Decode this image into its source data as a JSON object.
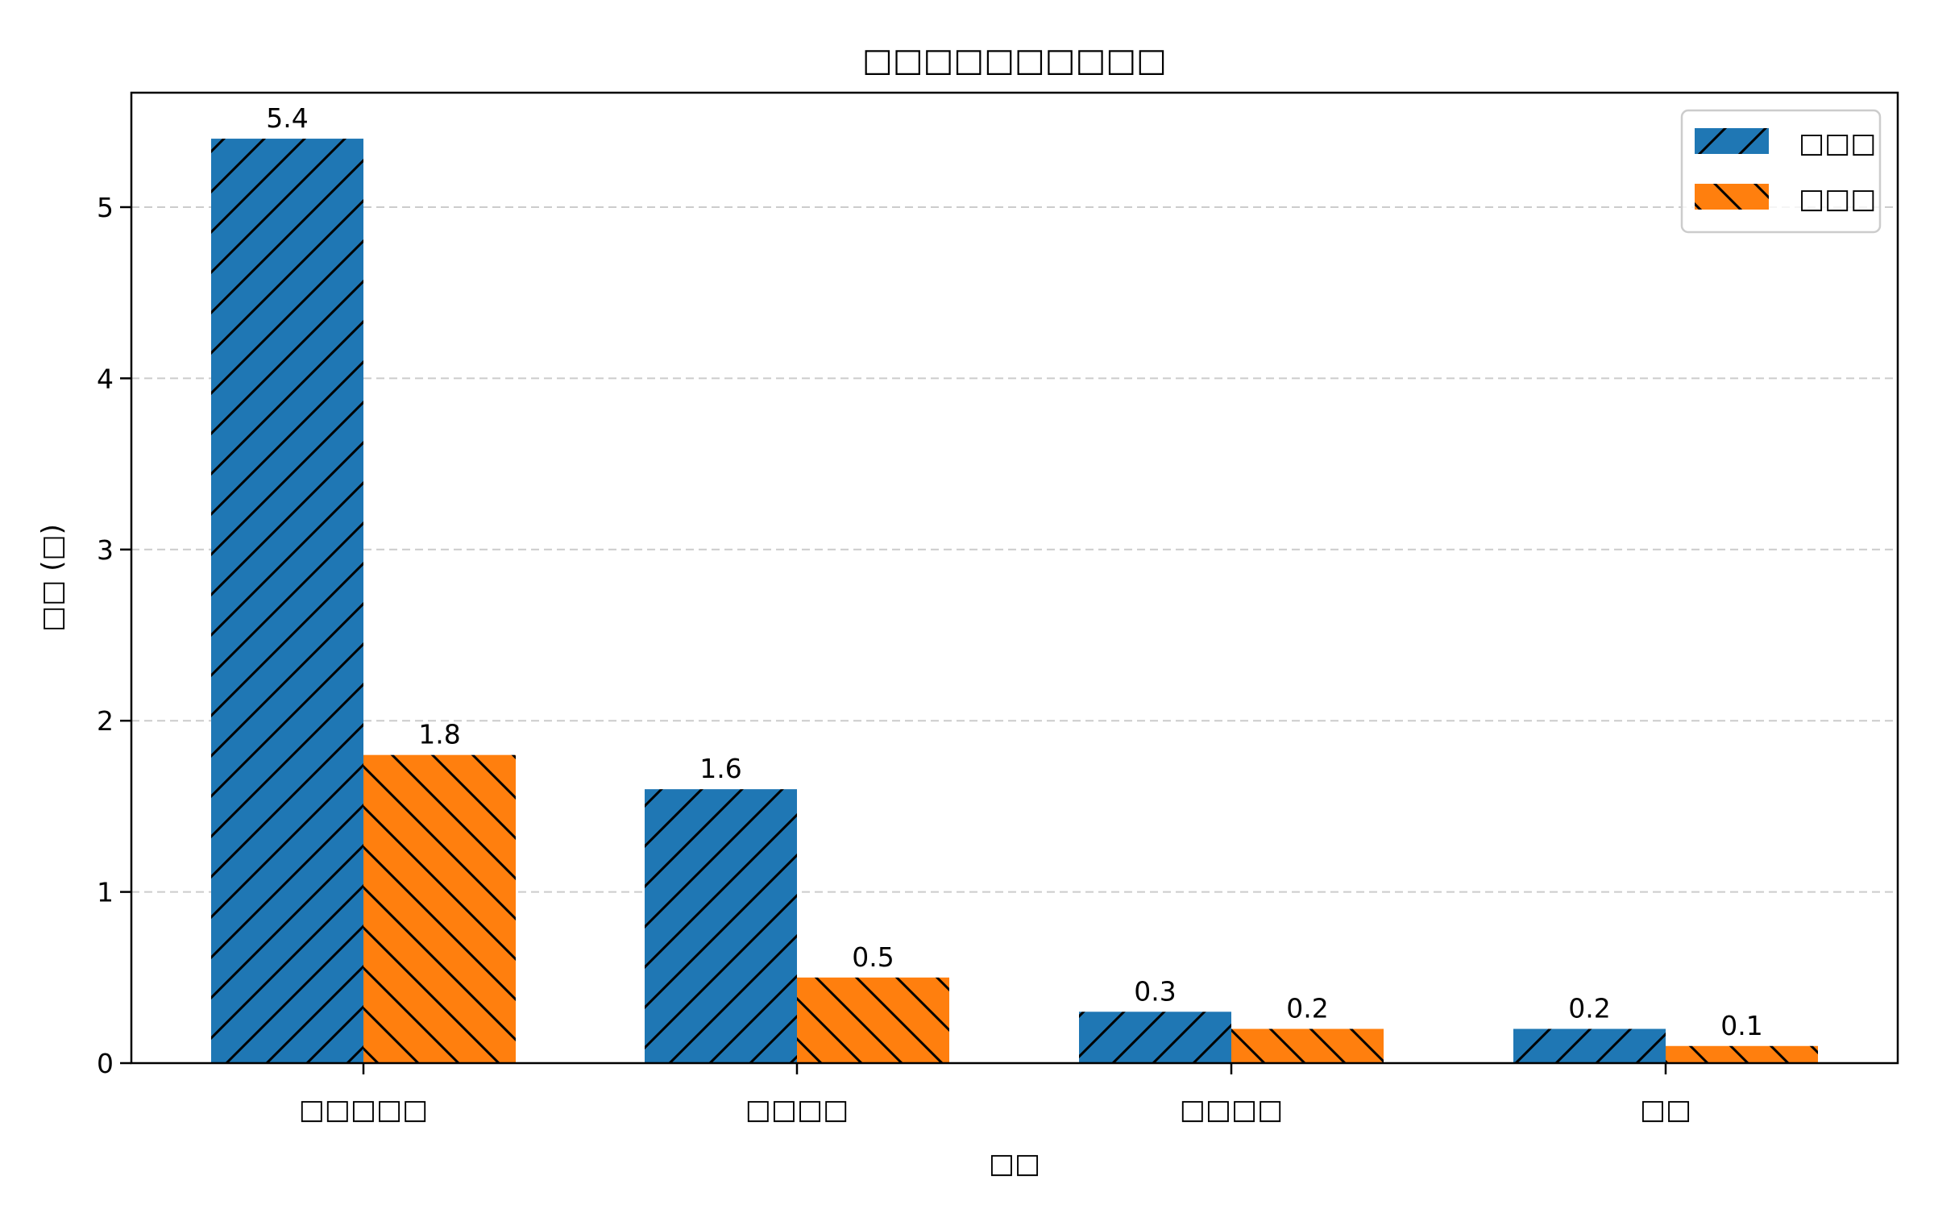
{
  "chart_data": {
    "type": "bar",
    "title": "□□□□□□□□□□",
    "xlabel": "□□",
    "ylabel": "□□ (□)",
    "categories": [
      "□□□□□",
      "□□□□",
      "□□□□",
      "□□"
    ],
    "series": [
      {
        "name": "□□□",
        "color": "#1f77b4",
        "hatch": "/",
        "values": [
          5.4,
          1.6,
          0.3,
          0.2
        ]
      },
      {
        "name": "□□□",
        "color": "#ff7f0e",
        "hatch": "\\",
        "values": [
          1.8,
          0.5,
          0.2,
          0.1
        ]
      }
    ],
    "ylim": [
      0,
      5.67
    ],
    "yticks": [
      0,
      1,
      2,
      3,
      4,
      5
    ],
    "grid": {
      "axis": "y",
      "style": "dashed",
      "color": "#cccccc"
    },
    "legend_position": "upper right",
    "value_labels": true
  }
}
